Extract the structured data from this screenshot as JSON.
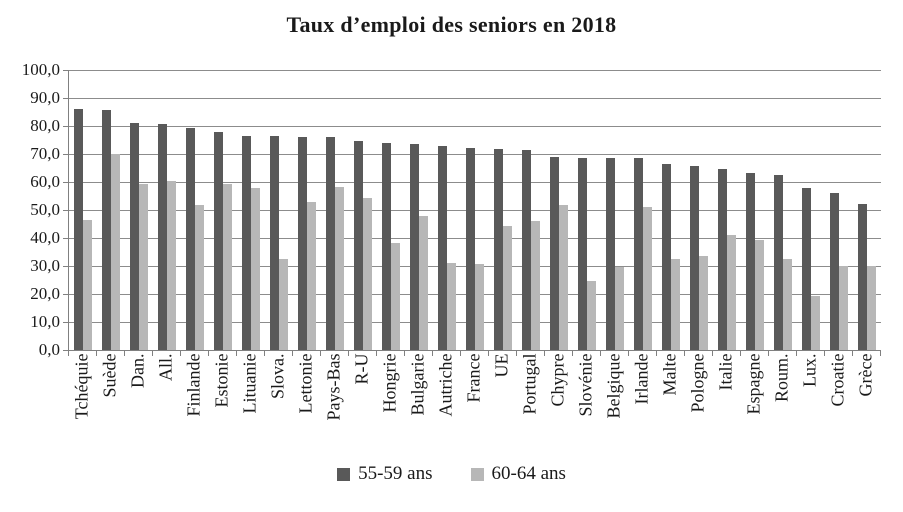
{
  "chart_data": {
    "type": "bar",
    "title": "Taux d’emploi des seniors en 2018",
    "categories": [
      "Tchéquie",
      "Suède",
      "Dan.",
      "All.",
      "Finlande",
      "Estonie",
      "Lituanie",
      "Slova.",
      "Lettonie",
      "Pays-Bas",
      "R-U",
      "Hongrie",
      "Bulgarie",
      "Autriche",
      "France",
      "UE",
      "Portugal",
      "Chypre",
      "Slovénie",
      "Belgique",
      "Irlande",
      "Malte",
      "Pologne",
      "Italie",
      "Espagne",
      "Roum.",
      "Lux.",
      "Croatie",
      "Grèce"
    ],
    "series": [
      {
        "name": "55-59 ans",
        "color": "#595959",
        "values": [
          86.0,
          85.6,
          81.0,
          80.6,
          79.2,
          77.7,
          76.5,
          76.3,
          76.2,
          75.9,
          74.6,
          73.8,
          73.4,
          72.7,
          72.1,
          71.8,
          71.4,
          69.0,
          68.7,
          68.6,
          68.5,
          66.3,
          65.7,
          64.6,
          63.2,
          62.5,
          58.0,
          55.9,
          52.1
        ]
      },
      {
        "name": "60-64 ans",
        "color": "#b7b7b7",
        "values": [
          46.4,
          70.0,
          59.4,
          60.5,
          51.9,
          59.2,
          58.0,
          32.6,
          52.9,
          58.2,
          54.3,
          38.1,
          47.9,
          30.9,
          30.7,
          44.2,
          45.9,
          51.8,
          24.8,
          29.8,
          51.2,
          32.5,
          33.6,
          41.2,
          39.4,
          32.4,
          19.3,
          30.0,
          30.0
        ]
      }
    ],
    "xlabel": "",
    "ylabel": "",
    "ylim": [
      0,
      100
    ],
    "y_tick_step": 10,
    "y_tick_labels": [
      "0,0",
      "10,0",
      "20,0",
      "30,0",
      "40,0",
      "50,0",
      "60,0",
      "70,0",
      "80,0",
      "90,0",
      "100,0"
    ],
    "grid": "on",
    "legend_position": "bottom"
  }
}
